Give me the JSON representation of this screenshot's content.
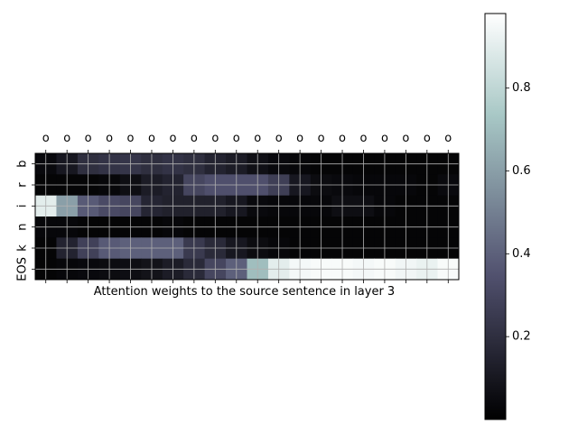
{
  "chart_data": {
    "type": "heatmap",
    "title": "",
    "xlabel": "Attention weights to the source sentence in layer 3",
    "ylabel": "",
    "x_tick_labels": [
      "o",
      "o",
      "o",
      "o",
      "o",
      "o",
      "o",
      "o",
      "o",
      "o",
      "o",
      "o",
      "o",
      "o",
      "o",
      "o",
      "o",
      "o",
      "o",
      "o"
    ],
    "y_tick_labels": [
      "b",
      "r",
      "i",
      "n",
      "k",
      "EOS"
    ],
    "x_tick_position": "top",
    "grid": true,
    "colormap": "bone",
    "colorbar": {
      "range": [
        0.0,
        0.98
      ],
      "ticks": [
        "0.2",
        "0.4",
        "0.6",
        "0.8"
      ],
      "tick_values": [
        0.2,
        0.4,
        0.6,
        0.8
      ]
    },
    "values": [
      [
        0.04,
        0.1,
        0.2,
        0.22,
        0.23,
        0.2,
        0.22,
        0.2,
        0.15,
        0.12,
        0.07,
        0.04,
        0.03,
        0.02,
        0.02,
        0.02,
        0.02,
        0.02,
        0.02,
        0.02
      ],
      [
        0.02,
        0.02,
        0.02,
        0.03,
        0.06,
        0.12,
        0.15,
        0.3,
        0.34,
        0.34,
        0.34,
        0.27,
        0.1,
        0.05,
        0.04,
        0.03,
        0.03,
        0.03,
        0.02,
        0.04
      ],
      [
        0.9,
        0.6,
        0.38,
        0.32,
        0.3,
        0.16,
        0.14,
        0.14,
        0.14,
        0.1,
        0.04,
        0.03,
        0.03,
        0.03,
        0.06,
        0.06,
        0.03,
        0.02,
        0.02,
        0.02
      ],
      [
        0.03,
        0.03,
        0.02,
        0.02,
        0.02,
        0.02,
        0.03,
        0.02,
        0.02,
        0.02,
        0.02,
        0.02,
        0.02,
        0.02,
        0.02,
        0.02,
        0.02,
        0.02,
        0.02,
        0.02
      ],
      [
        0.02,
        0.15,
        0.28,
        0.38,
        0.4,
        0.4,
        0.4,
        0.25,
        0.18,
        0.1,
        0.05,
        0.03,
        0.02,
        0.02,
        0.02,
        0.02,
        0.02,
        0.02,
        0.02,
        0.02
      ],
      [
        0.02,
        0.03,
        0.04,
        0.05,
        0.06,
        0.08,
        0.12,
        0.18,
        0.3,
        0.4,
        0.7,
        0.9,
        0.95,
        0.96,
        0.96,
        0.95,
        0.96,
        0.94,
        0.92,
        0.96
      ]
    ]
  }
}
